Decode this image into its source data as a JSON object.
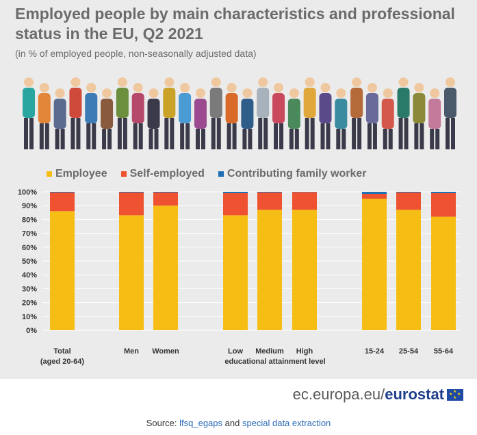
{
  "header": {
    "title": "Employed people by main characteristics and professional status in the EU, Q2 2021",
    "subtitle": "(in % of employed people, non-seasonally adjusted data)"
  },
  "legend": [
    {
      "label": "Employee",
      "color": "#f6be14"
    },
    {
      "label": "Self-employed",
      "color": "#ef5230"
    },
    {
      "label": "Contributing family worker",
      "color": "#1f6fb5"
    }
  ],
  "chart_data": {
    "type": "bar",
    "stacked": true,
    "categories": [
      "Total\n(aged 20-64)",
      "Men",
      "Women",
      "Low",
      "Medium",
      "High",
      "15-24",
      "25-54",
      "55-64"
    ],
    "group_label": "educational attainment level",
    "series": [
      {
        "name": "Employee",
        "values": [
          86,
          83,
          90,
          83,
          87,
          87,
          95,
          87,
          82
        ]
      },
      {
        "name": "Self-employed",
        "values": [
          13.5,
          16.5,
          9.5,
          16,
          12.5,
          12.8,
          3.5,
          12.5,
          17
        ]
      },
      {
        "name": "Contributing family worker",
        "values": [
          0.5,
          0.5,
          0.5,
          1,
          0.5,
          0.2,
          1.5,
          0.5,
          1
        ]
      }
    ],
    "y_ticks": [
      "0%",
      "10%",
      "20%",
      "30%",
      "40%",
      "50%",
      "60%",
      "70%",
      "80%",
      "90%",
      "100%"
    ],
    "ylim": [
      0,
      100
    ],
    "grid": true
  },
  "footer": {
    "brand_left": "ec.europa.eu/",
    "brand_right": "eurostat",
    "source_prefix": "Source: ",
    "source_link1": "lfsq_egaps",
    "source_mid": " and ",
    "source_link2": "special data extraction"
  }
}
